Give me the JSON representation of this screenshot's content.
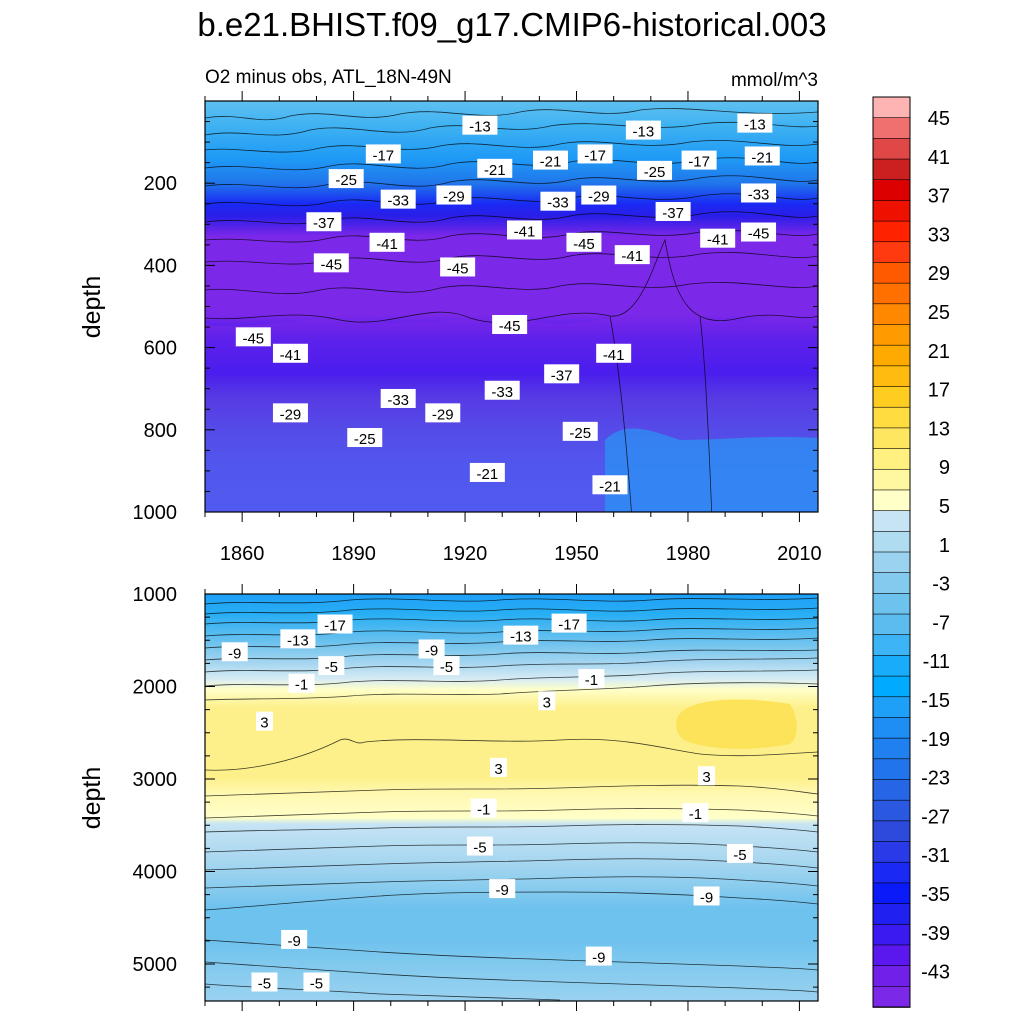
{
  "title": "b.e21.BHIST.f09_g17.CMIP6-historical.003",
  "subtitle_left": "O2 minus obs, ATL_18N-49N",
  "subtitle_right": "mmol/m^3",
  "colors": {
    "deep_purple": "#7c28e8",
    "purple": "#8a2be2",
    "blue_dark": "#1010f0",
    "blue": "#1f6fe8",
    "sky": "#1e90ff",
    "light_blue": "#5fc0f0",
    "pale_blue": "#c6e4f4",
    "pale_yellow": "#ffffc0",
    "yellow": "#fdf188"
  },
  "chart_data": [
    {
      "type": "contour",
      "name": "upper",
      "xlabel": "",
      "ylabel": "depth",
      "xlim": [
        1850,
        2015
      ],
      "ylim": [
        1000,
        0
      ],
      "xticks": [
        1860,
        1890,
        1920,
        1950,
        1980,
        2010
      ],
      "yticks": [
        200,
        400,
        600,
        800,
        1000
      ],
      "contour_labels": [
        {
          "text": "-13",
          "x": 1924,
          "y": 60
        },
        {
          "text": "-13",
          "x": 1968,
          "y": 72
        },
        {
          "text": "-13",
          "x": 1998,
          "y": 55
        },
        {
          "text": "-17",
          "x": 1898,
          "y": 130
        },
        {
          "text": "-17",
          "x": 1955,
          "y": 130
        },
        {
          "text": "-17",
          "x": 1983,
          "y": 145
        },
        {
          "text": "-21",
          "x": 1928,
          "y": 165
        },
        {
          "text": "-21",
          "x": 1943,
          "y": 145
        },
        {
          "text": "-21",
          "x": 2000,
          "y": 135
        },
        {
          "text": "-25",
          "x": 1888,
          "y": 190
        },
        {
          "text": "-25",
          "x": 1971,
          "y": 170
        },
        {
          "text": "-29",
          "x": 1917,
          "y": 230
        },
        {
          "text": "-29",
          "x": 1956,
          "y": 230
        },
        {
          "text": "-33",
          "x": 1902,
          "y": 240
        },
        {
          "text": "-33",
          "x": 1945,
          "y": 245
        },
        {
          "text": "-33",
          "x": 1999,
          "y": 225
        },
        {
          "text": "-37",
          "x": 1882,
          "y": 295
        },
        {
          "text": "-37",
          "x": 1976,
          "y": 270
        },
        {
          "text": "-41",
          "x": 1899,
          "y": 345
        },
        {
          "text": "-41",
          "x": 1936,
          "y": 315
        },
        {
          "text": "-41",
          "x": 1965,
          "y": 375
        },
        {
          "text": "-41",
          "x": 1988,
          "y": 335
        },
        {
          "text": "-45",
          "x": 1884,
          "y": 395
        },
        {
          "text": "-45",
          "x": 1918,
          "y": 405
        },
        {
          "text": "-45",
          "x": 1952,
          "y": 345
        },
        {
          "text": "-45",
          "x": 1999,
          "y": 320
        },
        {
          "text": "-45",
          "x": 1863,
          "y": 575
        },
        {
          "text": "-45",
          "x": 1932,
          "y": 545
        },
        {
          "text": "-41",
          "x": 1873,
          "y": 615
        },
        {
          "text": "-41",
          "x": 1960,
          "y": 615
        },
        {
          "text": "-37",
          "x": 1946,
          "y": 665
        },
        {
          "text": "-33",
          "x": 1902,
          "y": 725
        },
        {
          "text": "-33",
          "x": 1930,
          "y": 705
        },
        {
          "text": "-29",
          "x": 1873,
          "y": 760
        },
        {
          "text": "-29",
          "x": 1914,
          "y": 760
        },
        {
          "text": "-25",
          "x": 1893,
          "y": 820
        },
        {
          "text": "-25",
          "x": 1951,
          "y": 805
        },
        {
          "text": "-21",
          "x": 1926,
          "y": 905
        },
        {
          "text": "-21",
          "x": 1959,
          "y": 935
        }
      ]
    },
    {
      "type": "contour",
      "name": "lower",
      "xlabel": "",
      "ylabel": "depth",
      "xlim": [
        1850,
        2015
      ],
      "ylim": [
        5400,
        1000
      ],
      "yticks": [
        1000,
        2000,
        3000,
        4000,
        5000
      ],
      "contour_labels": [
        {
          "text": "-17",
          "x": 1885,
          "y": 1330
        },
        {
          "text": "-17",
          "x": 1948,
          "y": 1320
        },
        {
          "text": "-13",
          "x": 1875,
          "y": 1490
        },
        {
          "text": "-13",
          "x": 1935,
          "y": 1450
        },
        {
          "text": "-9",
          "x": 1858,
          "y": 1630
        },
        {
          "text": "-9",
          "x": 1911,
          "y": 1600
        },
        {
          "text": "-5",
          "x": 1884,
          "y": 1780
        },
        {
          "text": "-5",
          "x": 1915,
          "y": 1780
        },
        {
          "text": "-1",
          "x": 1876,
          "y": 1970
        },
        {
          "text": "-1",
          "x": 1954,
          "y": 1920
        },
        {
          "text": "3",
          "x": 1866,
          "y": 2380
        },
        {
          "text": "3",
          "x": 1942,
          "y": 2160
        },
        {
          "text": "3",
          "x": 1929,
          "y": 2880
        },
        {
          "text": "3",
          "x": 1985,
          "y": 2970
        },
        {
          "text": "-1",
          "x": 1925,
          "y": 3320
        },
        {
          "text": "-1",
          "x": 1982,
          "y": 3370
        },
        {
          "text": "-5",
          "x": 1924,
          "y": 3730
        },
        {
          "text": "-5",
          "x": 1994,
          "y": 3810
        },
        {
          "text": "-9",
          "x": 1930,
          "y": 4190
        },
        {
          "text": "-9",
          "x": 1985,
          "y": 4270
        },
        {
          "text": "-9",
          "x": 1874,
          "y": 4740
        },
        {
          "text": "-9",
          "x": 1956,
          "y": 4920
        },
        {
          "text": "-5",
          "x": 1866,
          "y": 5200
        },
        {
          "text": "-5",
          "x": 1880,
          "y": 5200
        }
      ]
    }
  ],
  "colorbar": {
    "labels": [
      "45",
      "41",
      "37",
      "33",
      "29",
      "25",
      "21",
      "17",
      "13",
      "9",
      "5",
      "1",
      "-3",
      "-7",
      "-11",
      "-15",
      "-19",
      "-23",
      "-27",
      "-31",
      "-35",
      "-39",
      "-43"
    ],
    "swatches": [
      "#ffb4b4",
      "#f07070",
      "#e04848",
      "#cc2020",
      "#dd0000",
      "#ee1100",
      "#ff2200",
      "#ff3a10",
      "#ff5a00",
      "#ff7000",
      "#ff8800",
      "#ff9a00",
      "#ffaa00",
      "#ffbb10",
      "#ffcc20",
      "#ffdc40",
      "#ffe660",
      "#fff080",
      "#fff8a0",
      "#ffffc8",
      "#c6e4f4",
      "#b0dcf2",
      "#9ad2f0",
      "#84caee",
      "#6ec2ee",
      "#5cbcf0",
      "#3cb4f6",
      "#18acfa",
      "#00aaff",
      "#1e9ff8",
      "#1f8ef4",
      "#2080f0",
      "#2274ec",
      "#2666e6",
      "#2a58e0",
      "#2e4adc",
      "#2a3ae8",
      "#1a2af4",
      "#0a1af8",
      "#2020f0",
      "#3a1af0",
      "#5a18ee",
      "#7020e8",
      "#7c28e8"
    ]
  }
}
